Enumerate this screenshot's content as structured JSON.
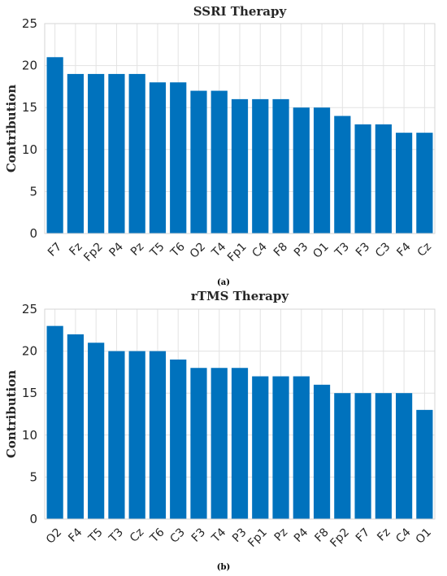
{
  "chart_data": [
    {
      "type": "bar",
      "title": "SSRI Therapy",
      "ylabel": "Contribution",
      "caption": "(a)",
      "ylim": [
        0,
        25
      ],
      "yticks": [
        0,
        5,
        10,
        15,
        20,
        25
      ],
      "grid": true,
      "bar_color": "#0072BD",
      "categories": [
        "F7",
        "Fz",
        "Fp2",
        "P4",
        "Pz",
        "T5",
        "T6",
        "O2",
        "T4",
        "Fp1",
        "C4",
        "F8",
        "P3",
        "O1",
        "T3",
        "F3",
        "C3",
        "F4",
        "Cz"
      ],
      "values": [
        21,
        19,
        19,
        19,
        19,
        18,
        18,
        17,
        17,
        16,
        16,
        16,
        15,
        15,
        14,
        13,
        13,
        12,
        12
      ]
    },
    {
      "type": "bar",
      "title": "rTMS Therapy",
      "ylabel": "Contribution",
      "caption": "(b)",
      "ylim": [
        0,
        25
      ],
      "yticks": [
        0,
        5,
        10,
        15,
        20,
        25
      ],
      "grid": true,
      "bar_color": "#0072BD",
      "categories": [
        "O2",
        "F4",
        "T5",
        "T3",
        "Cz",
        "T6",
        "C3",
        "F3",
        "T4",
        "P3",
        "Fp1",
        "Pz",
        "P4",
        "F8",
        "Fp2",
        "F7",
        "Fz",
        "C4",
        "O1"
      ],
      "values": [
        23,
        22,
        21,
        20,
        20,
        20,
        19,
        18,
        18,
        18,
        17,
        17,
        17,
        16,
        15,
        15,
        15,
        15,
        13
      ]
    }
  ]
}
